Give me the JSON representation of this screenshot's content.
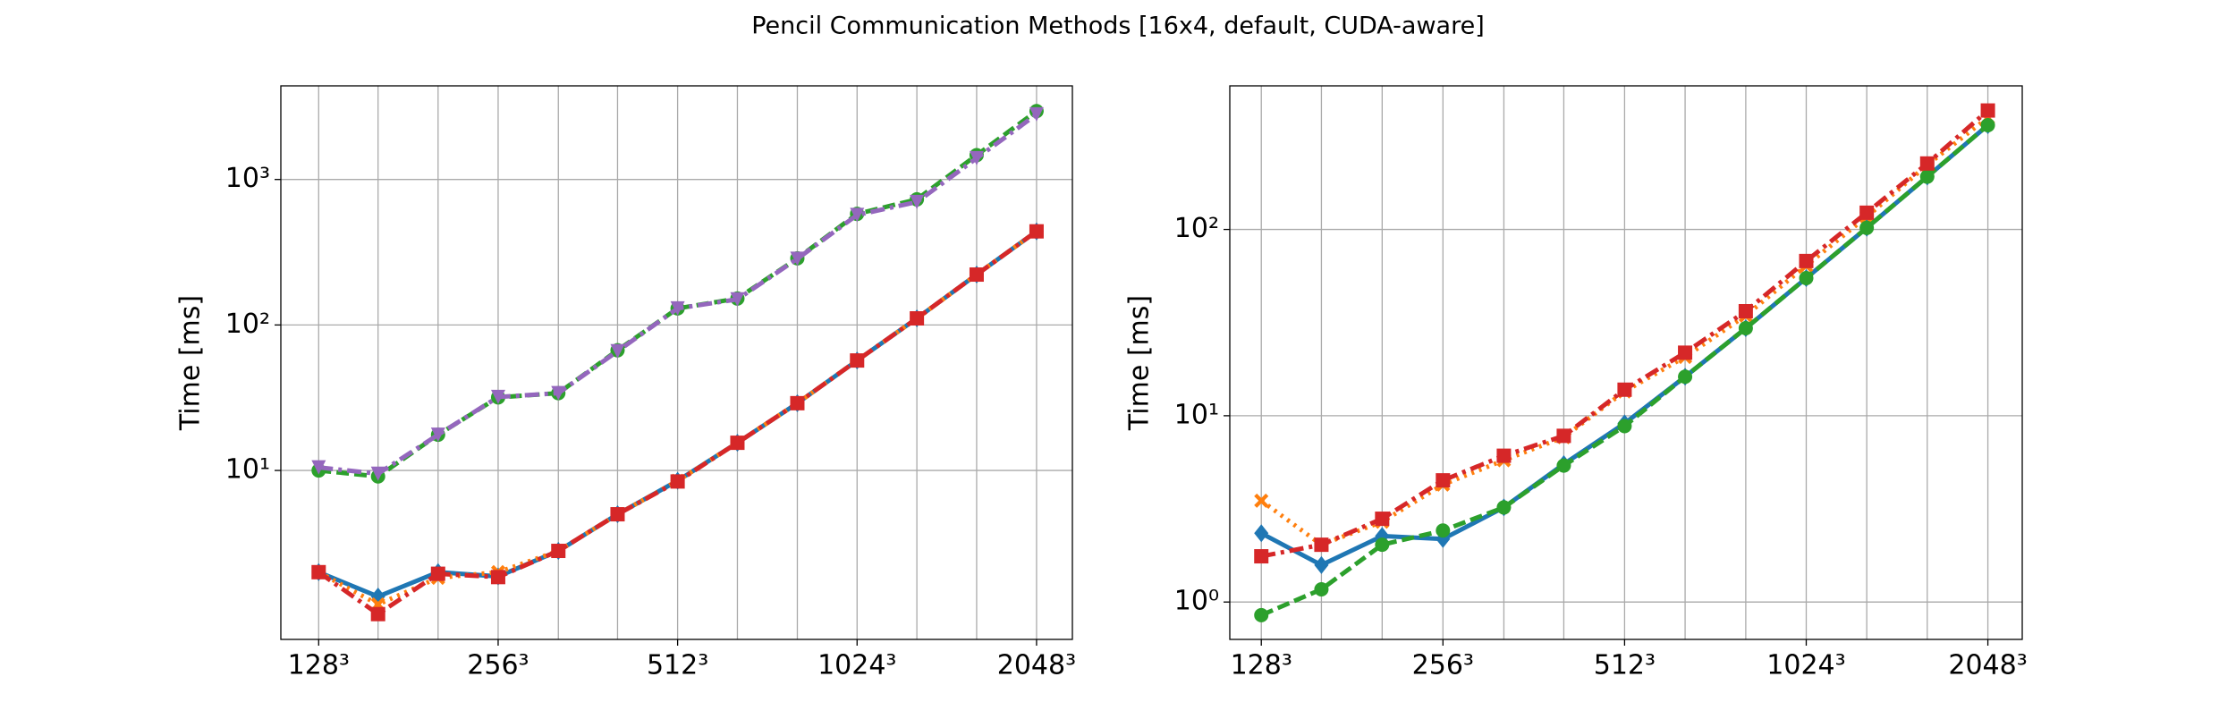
{
  "title": "Pencil Communication Methods [16x4, default, CUDA-aware]",
  "chart_data": [
    {
      "type": "line",
      "ylabel": "Time [ms]",
      "log_x": true,
      "log_y": true,
      "grid": true,
      "x": [
        128,
        161,
        203,
        256,
        323,
        406,
        512,
        645,
        813,
        1024,
        1290,
        1625,
        2048
      ],
      "xlim": [
        110.6,
        2352
      ],
      "xticks": [
        {
          "value": 128,
          "label": "128³"
        },
        {
          "value": 256,
          "label": "256³"
        },
        {
          "value": 512,
          "label": "512³"
        },
        {
          "value": 1024,
          "label": "1024³"
        },
        {
          "value": 2048,
          "label": "2048³"
        }
      ],
      "ylim": [
        0.69,
        4400
      ],
      "yticks": [
        {
          "value": 10,
          "label": "10¹"
        },
        {
          "value": 100,
          "label": "10²"
        },
        {
          "value": 1000,
          "label": "10³"
        }
      ],
      "series": [
        {
          "color": "#1f77b4",
          "linestyle": "solid",
          "marker": "D",
          "values": [
            2.0,
            1.36,
            2.0,
            1.87,
            2.8,
            5.0,
            8.5,
            15.5,
            29,
            57,
            111,
            222,
            440
          ]
        },
        {
          "color": "#ff7f0e",
          "linestyle": "dotted",
          "marker": "X",
          "values": [
            2.0,
            1.2,
            1.83,
            2.0,
            2.8,
            5.0,
            8.5,
            15.5,
            29,
            57,
            111,
            222,
            440
          ]
        },
        {
          "color": "#2ca02c",
          "linestyle": "dashed",
          "marker": "o",
          "values": [
            10,
            9.1,
            17.6,
            31.8,
            34,
            67,
            130,
            152,
            287,
            580,
            730,
            1470,
            2950
          ]
        },
        {
          "color": "#d62728",
          "linestyle": "dashdot",
          "marker": "s",
          "values": [
            2.0,
            1.03,
            1.95,
            1.85,
            2.8,
            5.0,
            8.4,
            15.5,
            29,
            57,
            111,
            222,
            440
          ]
        },
        {
          "color": "#9467bd",
          "linestyle": "dashdot",
          "marker": "v",
          "values": [
            10.5,
            9.5,
            17.6,
            32,
            34,
            66,
            130,
            150,
            285,
            570,
            700,
            1400,
            2800
          ]
        }
      ]
    },
    {
      "type": "line",
      "ylabel": "Time [ms]",
      "log_x": true,
      "log_y": true,
      "grid": true,
      "x": [
        128,
        161,
        203,
        256,
        323,
        406,
        512,
        645,
        813,
        1024,
        1290,
        1625,
        2048
      ],
      "xlim": [
        113.5,
        2335
      ],
      "xticks": [
        {
          "value": 128,
          "label": "128³"
        },
        {
          "value": 256,
          "label": "256³"
        },
        {
          "value": 512,
          "label": "512³"
        },
        {
          "value": 1024,
          "label": "1024³"
        },
        {
          "value": 2048,
          "label": "2048³"
        }
      ],
      "ylim": [
        0.63,
        590
      ],
      "yticks": [
        {
          "value": 1,
          "label": "10⁰"
        },
        {
          "value": 10,
          "label": "10¹"
        },
        {
          "value": 100,
          "label": "10²"
        }
      ],
      "series": [
        {
          "color": "#1f77b4",
          "linestyle": "solid",
          "marker": "D",
          "values": [
            2.34,
            1.58,
            2.26,
            2.18,
            3.22,
            5.5,
            9.1,
            16.2,
            29.5,
            54.8,
            102,
            192,
            363
          ]
        },
        {
          "color": "#ff7f0e",
          "linestyle": "dotted",
          "marker": "X",
          "values": [
            3.5,
            2.03,
            2.7,
            4.27,
            5.77,
            7.67,
            13.5,
            20.7,
            34.5,
            64,
            117,
            222,
            398
          ]
        },
        {
          "color": "#2ca02c",
          "linestyle": "dashed",
          "marker": "o",
          "values": [
            0.85,
            1.17,
            2.03,
            2.42,
            3.22,
            5.4,
            8.8,
            16.2,
            29.5,
            54.8,
            102,
            192,
            363
          ]
        },
        {
          "color": "#d62728",
          "linestyle": "dashdot",
          "marker": "s",
          "values": [
            1.76,
            2.03,
            2.8,
            4.5,
            6.1,
            7.8,
            13.8,
            21.8,
            36.4,
            67.7,
            123,
            226,
            435
          ]
        }
      ]
    }
  ]
}
